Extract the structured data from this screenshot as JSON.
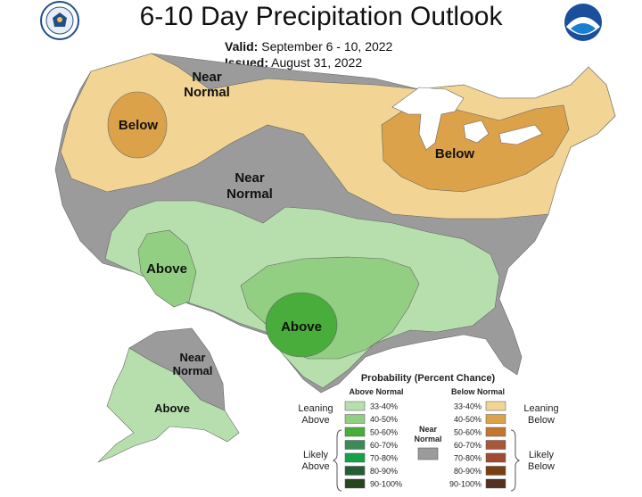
{
  "title": "6-10 Day Precipitation Outlook",
  "valid": {
    "label": "Valid:",
    "value": "September 6 - 10, 2022"
  },
  "issued": {
    "label": "Issued:",
    "value": "August 31, 2022"
  },
  "map_labels": {
    "near_normal_north_1": "Near",
    "near_normal_north_2": "Normal",
    "below_west": "Below",
    "near_normal_central_1": "Near",
    "near_normal_central_2": "Normal",
    "below_east": "Below",
    "above_southwest": "Above",
    "above_texas": "Above",
    "alaska_near_normal_1": "Near",
    "alaska_near_normal_2": "Normal",
    "alaska_above": "Above"
  },
  "legend": {
    "title": "Probability (Percent Chance)",
    "above_header": "Above Normal",
    "below_header": "Below Normal",
    "near_normal_1": "Near",
    "near_normal_2": "Normal",
    "leaning_above_1": "Leaning",
    "leaning_above_2": "Above",
    "likely_above_1": "Likely",
    "likely_above_2": "Above",
    "leaning_below_1": "Leaning",
    "leaning_below_2": "Below",
    "likely_below_1": "Likely",
    "likely_below_2": "Below",
    "above_levels": [
      {
        "label": "33-40%",
        "color": "#b7dfae"
      },
      {
        "label": "40-50%",
        "color": "#93cf82"
      },
      {
        "label": "50-60%",
        "color": "#48ad3a"
      },
      {
        "label": "60-70%",
        "color": "#3c8a55"
      },
      {
        "label": "70-80%",
        "color": "#17a04a"
      },
      {
        "label": "80-90%",
        "color": "#245e34"
      },
      {
        "label": "90-100%",
        "color": "#25461f"
      }
    ],
    "below_levels": [
      {
        "label": "33-40%",
        "color": "#f2d494"
      },
      {
        "label": "40-50%",
        "color": "#dca24a"
      },
      {
        "label": "50-60%",
        "color": "#c3762f"
      },
      {
        "label": "60-70%",
        "color": "#a7573a"
      },
      {
        "label": "70-80%",
        "color": "#a34a35"
      },
      {
        "label": "80-90%",
        "color": "#7a3f10"
      },
      {
        "label": "90-100%",
        "color": "#553020"
      }
    ],
    "near_normal_color": "#9b9b9b"
  },
  "colors": {
    "near_normal": "#9b9b9b",
    "leaning_below": "#f2d494",
    "below_40_50": "#dca24a",
    "leaning_above": "#b7dfae",
    "above_40_50": "#93cf82",
    "above_50_60": "#48ad3a",
    "water": "#ffffff"
  },
  "logos": {
    "left": "commerce-seal-icon",
    "right": "noaa-logo-icon"
  }
}
